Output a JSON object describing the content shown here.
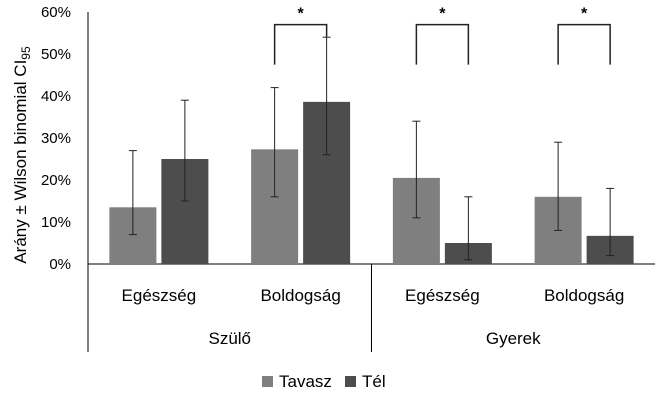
{
  "chart_data": {
    "type": "bar",
    "title": "",
    "xlabel": "",
    "ylabel_main": "Arány ± Wilson binomial CI",
    "ylabel_sub": "95",
    "ylim": [
      0,
      60
    ],
    "y_ticks": [
      "0%",
      "10%",
      "20%",
      "30%",
      "40%",
      "50%",
      "60%"
    ],
    "y_tick_values": [
      0,
      10,
      20,
      30,
      40,
      50,
      60
    ],
    "grid": false,
    "legend_position": "bottom",
    "categories": [
      "Egészség",
      "Boldogság",
      "Egészség",
      "Boldogság"
    ],
    "groups": [
      {
        "label": "Szülő",
        "categories": [
          0,
          1
        ]
      },
      {
        "label": "Gyerek",
        "categories": [
          2,
          3
        ]
      }
    ],
    "series": [
      {
        "name": "Tavasz",
        "color": "#7f7f7f",
        "values": [
          13.5,
          27.3,
          20.5,
          16.0
        ],
        "ci_low": [
          7,
          16,
          11,
          8
        ],
        "ci_high": [
          27,
          42,
          34,
          29
        ]
      },
      {
        "name": "Tél",
        "color": "#4d4d4d",
        "values": [
          25.0,
          38.6,
          5.0,
          6.7
        ],
        "ci_low": [
          15,
          26,
          1,
          2
        ],
        "ci_high": [
          39,
          54,
          16,
          18
        ]
      }
    ],
    "significance": [
      {
        "category": 1,
        "label": "*",
        "level": 57
      },
      {
        "category": 2,
        "label": "*",
        "level": 57
      },
      {
        "category": 3,
        "label": "*",
        "level": 57
      }
    ]
  }
}
